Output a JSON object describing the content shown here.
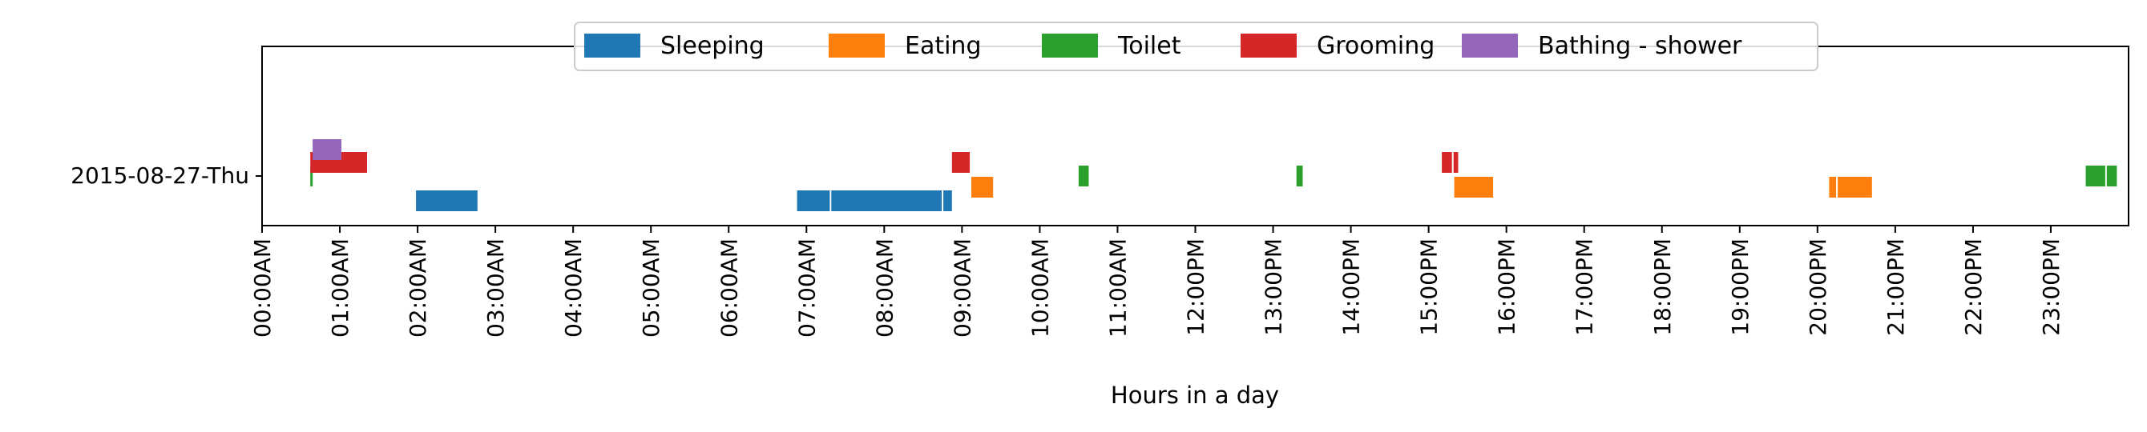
{
  "chart_data": {
    "type": "timeline",
    "xlabel": "Hours in a day",
    "xlim": [
      0,
      24
    ],
    "x_ticks": [
      "00:00AM",
      "01:00AM",
      "02:00AM",
      "03:00AM",
      "04:00AM",
      "05:00AM",
      "06:00AM",
      "07:00AM",
      "08:00AM",
      "09:00AM",
      "10:00AM",
      "11:00AM",
      "12:00PM",
      "13:00PM",
      "14:00PM",
      "15:00PM",
      "16:00PM",
      "17:00PM",
      "18:00PM",
      "19:00PM",
      "20:00PM",
      "21:00PM",
      "22:00PM",
      "23:00PM"
    ],
    "rows": [
      "2015-08-27-Thu"
    ],
    "legend_position": "top-center",
    "grid": false,
    "series": [
      {
        "name": "Sleeping",
        "color": "#1f77b4",
        "intervals": [
          [
            1.98,
            2.77
          ],
          [
            6.88,
            7.3
          ],
          [
            7.32,
            8.74
          ],
          [
            8.76,
            8.87
          ]
        ]
      },
      {
        "name": "Eating",
        "color": "#ff7f0e",
        "intervals": [
          [
            9.12,
            9.4
          ],
          [
            15.33,
            15.83
          ],
          [
            20.15,
            20.24
          ],
          [
            20.26,
            20.7
          ]
        ]
      },
      {
        "name": "Toilet",
        "color": "#2ca02c",
        "intervals": [
          [
            0.62,
            0.65
          ],
          [
            10.5,
            10.63
          ],
          [
            13.3,
            13.38
          ],
          [
            23.45,
            23.7
          ],
          [
            23.72,
            23.85
          ]
        ]
      },
      {
        "name": "Grooming",
        "color": "#d62728",
        "intervals": [
          [
            0.62,
            1.35
          ],
          [
            8.87,
            9.1
          ],
          [
            15.17,
            15.3
          ],
          [
            15.32,
            15.38
          ]
        ]
      },
      {
        "name": "Bathing - shower",
        "color": "#9467bd",
        "intervals": [
          [
            0.65,
            1.02
          ]
        ]
      }
    ]
  }
}
